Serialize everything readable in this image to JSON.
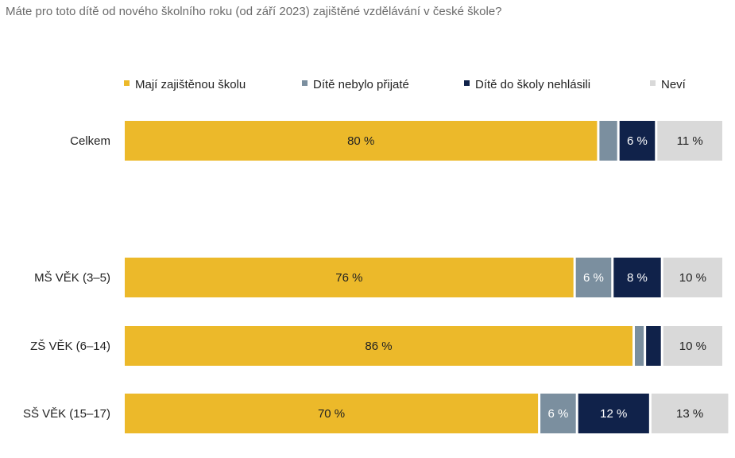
{
  "chart_data": {
    "type": "bar",
    "orientation": "horizontal",
    "stacked": true,
    "title": "Máte pro toto dítě od nového školního roku (od září 2023) zajištěné vzdělávání v české škole?",
    "categories": [
      "Celkem",
      "MŠ VĚK (3–5)",
      "ZŠ VĚK (6–14)",
      "SŠ VĚK (15–17)"
    ],
    "series": [
      {
        "name": "Mají zajištěnou školu",
        "color": "#ecb92a",
        "values": [
          80,
          76,
          86,
          70
        ],
        "labels": [
          "80 %",
          "76 %",
          "86 %",
          "70 %"
        ]
      },
      {
        "name": "Dítě nebylo přijaté",
        "color": "#7b8f9f",
        "values": [
          3,
          6,
          1.5,
          6
        ],
        "labels": [
          "",
          "6 %",
          "",
          "6 %"
        ]
      },
      {
        "name": "Dítě do školy nehlásili",
        "color": "#10224a",
        "values": [
          6,
          8,
          2.5,
          12
        ],
        "labels": [
          "6 %",
          "8 %",
          "",
          "12 %"
        ]
      },
      {
        "name": "Neví",
        "color": "#d9d9d9",
        "values": [
          11,
          10,
          10,
          13
        ],
        "labels": [
          "11 %",
          "10 %",
          "10 %",
          "13 %"
        ]
      }
    ],
    "xlim": [
      0,
      100
    ],
    "legend_position": "top",
    "grid": false
  }
}
